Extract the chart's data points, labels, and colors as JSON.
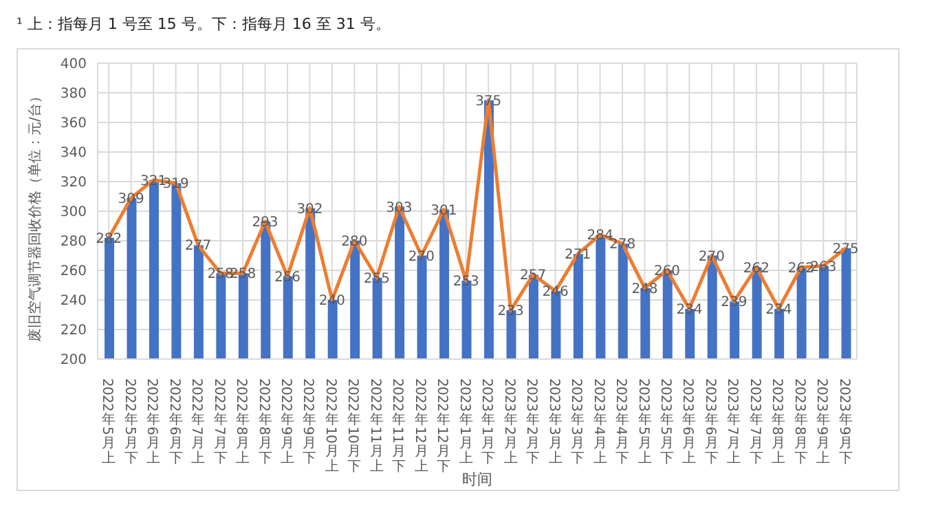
{
  "chart_data": {
    "type": "bar",
    "annotations": [
      "¹ 上：指每月 1 号至 15 号。下：指每月 16 至 31 号。"
    ],
    "xlabel": "时间",
    "ylabel": "废旧空气调节器回收价格（单位：元/台）",
    "categories": [
      "2022年5月上",
      "2022年5月下",
      "2022年6月上",
      "2022年6月下",
      "2022年7月上",
      "2022年7月下",
      "2022年8月上",
      "2022年8月下",
      "2022年9月上",
      "2022年9月下",
      "2022年10月上",
      "2022年10月下",
      "2022年11月上",
      "2022年11月下",
      "2022年12月上",
      "2022年12月下",
      "2023年1月上",
      "2023年1月下",
      "2023年2月上",
      "2023年2月下",
      "2023年3月上",
      "2023年3月下",
      "2023年4月上",
      "2023年4月下",
      "2023年5月上",
      "2023年5月下",
      "2023年6月上",
      "2023年6月下",
      "2023年7月上",
      "2023年7月下",
      "2023年8月上",
      "2023年8月下",
      "2023年9月上",
      "2023年9月下"
    ],
    "series": [
      {
        "color": "#4472c4",
        "values": [
          282,
          309,
          321,
          319,
          277,
          258,
          258,
          293,
          256,
          302,
          240,
          280,
          255,
          303,
          270,
          301,
          253,
          375,
          233,
          257,
          246,
          271,
          284,
          278,
          248,
          260,
          234,
          270,
          239,
          262,
          234,
          262,
          263,
          275
        ]
      },
      {
        "type": "line",
        "color": "#ed7d31",
        "values": [
          282,
          309,
          321,
          319,
          277,
          258,
          258,
          293,
          256,
          302,
          240,
          280,
          255,
          303,
          270,
          301,
          253,
          375,
          233,
          257,
          246,
          271,
          284,
          278,
          248,
          260,
          234,
          270,
          239,
          262,
          234,
          262,
          263,
          275
        ],
        "value_labels": [
          "282",
          "309",
          "321",
          "319",
          "277",
          "258",
          "258",
          "293",
          "256",
          "302",
          "240",
          "280",
          "255",
          "303",
          "270",
          "301",
          "253",
          "375",
          "233",
          "257",
          "246",
          "271",
          "284",
          "278",
          "248",
          "260",
          "234",
          "270",
          "239",
          "262",
          "234",
          "262",
          "263",
          "275"
        ]
      }
    ],
    "ylim": [
      200,
      400
    ],
    "yticks": [
      200,
      220,
      240,
      260,
      280,
      300,
      320,
      340,
      360,
      380,
      400
    ],
    "grid": true,
    "marker": "none",
    "line_style": "solid"
  }
}
